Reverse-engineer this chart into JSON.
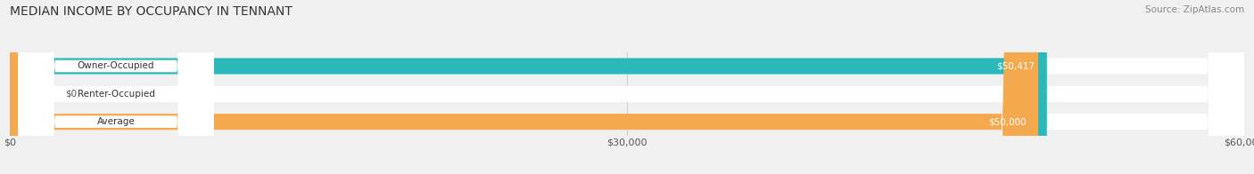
{
  "title": "MEDIAN INCOME BY OCCUPANCY IN TENNANT",
  "source": "Source: ZipAtlas.com",
  "categories": [
    "Owner-Occupied",
    "Renter-Occupied",
    "Average"
  ],
  "values": [
    50417,
    0,
    50000
  ],
  "bar_colors": [
    "#2ab8b8",
    "#c9a8d4",
    "#f5a94e"
  ],
  "value_labels": [
    "$50,417",
    "$0",
    "$50,000"
  ],
  "xlim": [
    0,
    60000
  ],
  "xticks": [
    0,
    30000,
    60000
  ],
  "xticklabels": [
    "$0",
    "$30,000",
    "$60,000"
  ],
  "background_color": "#f0f0f0",
  "bar_bg_color": "#e0e0e0",
  "title_fontsize": 10,
  "source_fontsize": 7.5,
  "bar_height": 0.58,
  "renter_small_val": 2000
}
